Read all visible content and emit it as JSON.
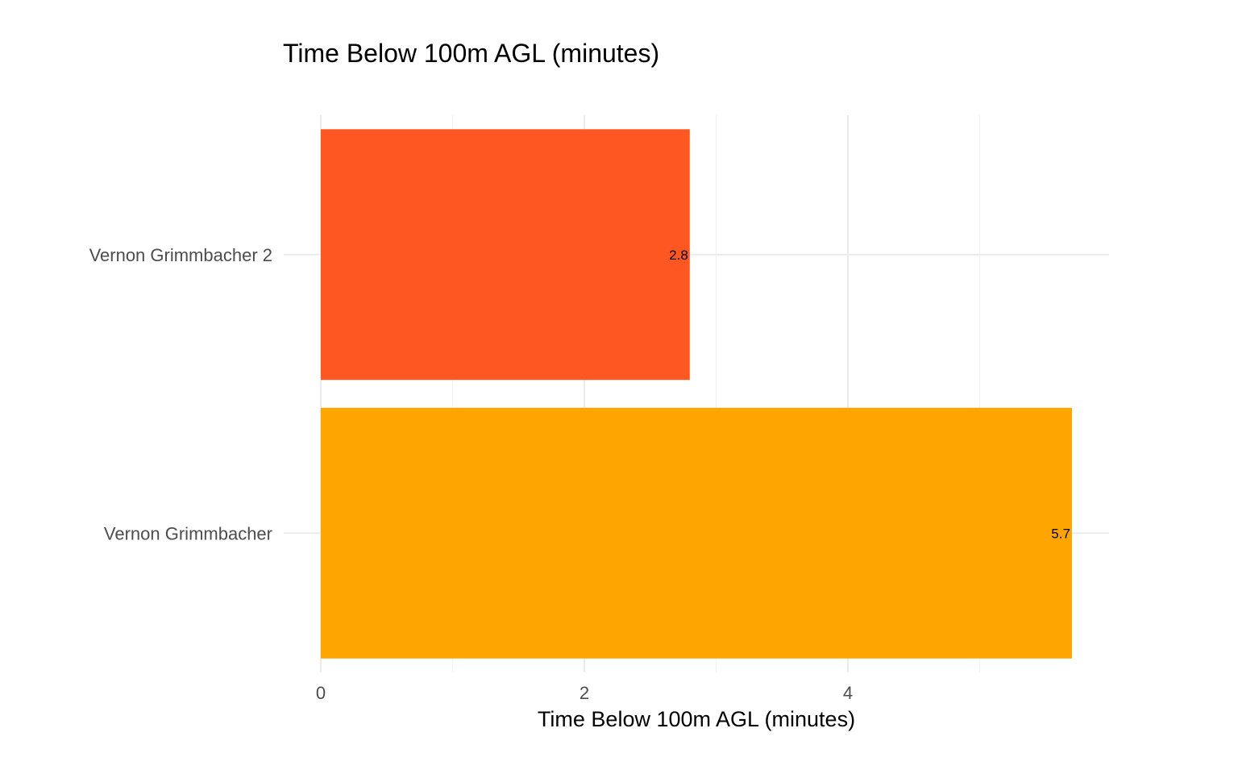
{
  "chart_data": {
    "type": "bar",
    "orientation": "horizontal",
    "title": "Time Below 100m AGL (minutes)",
    "xlabel": "Time Below 100m AGL (minutes)",
    "ylabel": "",
    "categories": [
      "Vernon Grimmbacher 2",
      "Vernon Grimmbacher"
    ],
    "values": [
      2.8,
      5.7
    ],
    "data_labels": [
      "2.8",
      "5.7"
    ],
    "colors": [
      "#FF5722",
      "#FFA500"
    ],
    "xlim": [
      0,
      6
    ],
    "x_ticks": [
      0,
      2,
      4
    ],
    "x_tick_labels": [
      "0",
      "2",
      "4"
    ],
    "grid": true,
    "legend": "none"
  }
}
